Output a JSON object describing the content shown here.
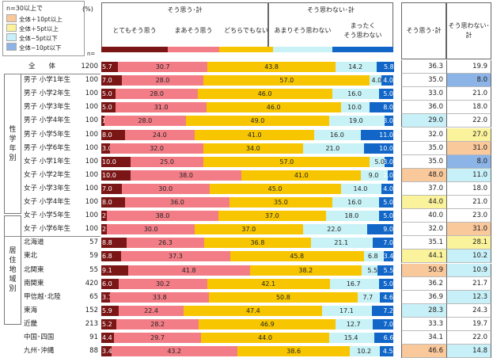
{
  "legend": {
    "title": "n=30以上で",
    "items": [
      {
        "label": "全体＋10pt以上",
        "color": "#f9c89b"
      },
      {
        "label": "全体＋5pt以上",
        "color": "#fbf39b"
      },
      {
        "label": "全体−5pt以下",
        "color": "#c8f0f8"
      },
      {
        "label": "全体−10pt以下",
        "color": "#8cb4e6"
      }
    ]
  },
  "percent_label": "(%)",
  "n_label": "n=",
  "headers": {
    "agree_group": "そう思う･計",
    "disagree_group": "そう思わない･計",
    "sum_agree": "そう思う･計",
    "sum_disagree": "そう思わない･\n計"
  },
  "columns": [
    {
      "label": "とてもそう思う",
      "color": "#7a1616"
    },
    {
      "label": "まあそう思う",
      "color": "#f27d86"
    },
    {
      "label": "どちらでもない",
      "color": "#f7c600"
    },
    {
      "label": "あまりそう思わない",
      "color": "#c8f2f6"
    },
    {
      "label": "まったく\nそう思わない",
      "color": "#1166c8"
    }
  ],
  "groups": [
    {
      "label": "性学年別",
      "start": 1,
      "end": 12
    },
    {
      "label": "居住地域別",
      "start": 13,
      "end": 20
    }
  ],
  "chart_data": {
    "type": "bar",
    "stacked": true,
    "orientation": "horizontal",
    "xlim": [
      0,
      100
    ],
    "series": [
      {
        "name": "とてもそう思う",
        "values": [
          5.7,
          7.0,
          5.0,
          5.0,
          1.0,
          8.0,
          3.0,
          10.0,
          10.0,
          7.0,
          8.0,
          2.0,
          2.0,
          8.8,
          6.8,
          9.1,
          6.0,
          3.1,
          5.9,
          5.2,
          4.4,
          3.4
        ]
      },
      {
        "name": "まあそう思う",
        "values": [
          30.7,
          28.0,
          28.0,
          31.0,
          28.0,
          24.0,
          32.0,
          25.0,
          38.0,
          30.0,
          36.0,
          38.0,
          30.0,
          26.3,
          37.3,
          41.8,
          30.2,
          33.8,
          22.4,
          28.2,
          29.7,
          43.2
        ]
      },
      {
        "name": "どちらでもない",
        "values": [
          43.8,
          57.0,
          46.0,
          46.0,
          49.0,
          41.0,
          34.0,
          57.0,
          41.0,
          45.0,
          35.0,
          37.0,
          37.0,
          36.8,
          45.8,
          38.2,
          42.1,
          50.8,
          47.4,
          46.9,
          44.0,
          38.6
        ]
      },
      {
        "name": "あまりそう思わない",
        "values": [
          14.2,
          4.0,
          16.0,
          10.0,
          19.0,
          16.0,
          21.0,
          5.0,
          9.0,
          14.0,
          16.0,
          18.0,
          22.0,
          21.1,
          6.8,
          5.5,
          16.7,
          7.7,
          17.1,
          12.7,
          15.4,
          10.2
        ]
      },
      {
        "name": "まったくそう思わない",
        "values": [
          5.8,
          4.0,
          5.0,
          8.0,
          3.0,
          11.0,
          10.0,
          3.0,
          2.0,
          4.0,
          5.0,
          5.0,
          9.0,
          7.0,
          3.4,
          5.5,
          5.0,
          4.6,
          7.2,
          7.0,
          6.6,
          4.5
        ]
      }
    ],
    "rows": [
      {
        "label": "全　　体",
        "n": 1200,
        "agree": "36.3",
        "disagree": "19.9",
        "agree_hl": "",
        "disagree_hl": ""
      },
      {
        "label": "男子 小学1年生",
        "n": 100,
        "agree": "35.0",
        "disagree": "8.0",
        "agree_hl": "",
        "disagree_hl": "#8cb4e6"
      },
      {
        "label": "男子 小学2年生",
        "n": 100,
        "agree": "33.0",
        "disagree": "21.0",
        "agree_hl": "",
        "disagree_hl": ""
      },
      {
        "label": "男子 小学3年生",
        "n": 100,
        "agree": "36.0",
        "disagree": "18.0",
        "agree_hl": "",
        "disagree_hl": ""
      },
      {
        "label": "男子 小学4年生",
        "n": 100,
        "agree": "29.0",
        "disagree": "22.0",
        "agree_hl": "#c8f0f8",
        "disagree_hl": ""
      },
      {
        "label": "男子 小学5年生",
        "n": 100,
        "agree": "32.0",
        "disagree": "27.0",
        "agree_hl": "",
        "disagree_hl": "#fbf39b"
      },
      {
        "label": "男子 小学6年生",
        "n": 100,
        "agree": "35.0",
        "disagree": "31.0",
        "agree_hl": "",
        "disagree_hl": "#f9c89b"
      },
      {
        "label": "女子 小学1年生",
        "n": 100,
        "agree": "35.0",
        "disagree": "8.0",
        "agree_hl": "",
        "disagree_hl": "#8cb4e6"
      },
      {
        "label": "女子 小学2年生",
        "n": 100,
        "agree": "48.0",
        "disagree": "11.0",
        "agree_hl": "#f9c89b",
        "disagree_hl": "#c8f0f8"
      },
      {
        "label": "女子 小学3年生",
        "n": 100,
        "agree": "37.0",
        "disagree": "18.0",
        "agree_hl": "",
        "disagree_hl": ""
      },
      {
        "label": "女子 小学4年生",
        "n": 100,
        "agree": "44.0",
        "disagree": "21.0",
        "agree_hl": "#fbf39b",
        "disagree_hl": ""
      },
      {
        "label": "女子 小学5年生",
        "n": 100,
        "agree": "40.0",
        "disagree": "23.0",
        "agree_hl": "",
        "disagree_hl": ""
      },
      {
        "label": "女子 小学6年生",
        "n": 100,
        "agree": "32.0",
        "disagree": "31.0",
        "agree_hl": "",
        "disagree_hl": "#f9c89b"
      },
      {
        "label": "北海道",
        "n": 57,
        "agree": "35.1",
        "disagree": "28.1",
        "agree_hl": "",
        "disagree_hl": "#fbf39b"
      },
      {
        "label": "東北",
        "n": 59,
        "agree": "44.1",
        "disagree": "10.2",
        "agree_hl": "#fbf39b",
        "disagree_hl": "#c8f0f8"
      },
      {
        "label": "北関東",
        "n": 55,
        "agree": "50.9",
        "disagree": "10.9",
        "agree_hl": "#f9c89b",
        "disagree_hl": "#c8f0f8"
      },
      {
        "label": "南関東",
        "n": 420,
        "agree": "36.2",
        "disagree": "21.7",
        "agree_hl": "",
        "disagree_hl": ""
      },
      {
        "label": "甲信越･北陸",
        "n": 65,
        "agree": "36.9",
        "disagree": "12.3",
        "agree_hl": "",
        "disagree_hl": "#c8f0f8"
      },
      {
        "label": "東海",
        "n": 152,
        "agree": "28.3",
        "disagree": "24.3",
        "agree_hl": "#c8f0f8",
        "disagree_hl": ""
      },
      {
        "label": "近畿",
        "n": 213,
        "agree": "33.3",
        "disagree": "19.7",
        "agree_hl": "",
        "disagree_hl": ""
      },
      {
        "label": "中国･四国",
        "n": 91,
        "agree": "34.1",
        "disagree": "22.0",
        "agree_hl": "",
        "disagree_hl": ""
      },
      {
        "label": "九州･沖縄",
        "n": 88,
        "agree": "46.6",
        "disagree": "14.8",
        "agree_hl": "#f9c89b",
        "disagree_hl": "#c8f0f8"
      }
    ]
  }
}
